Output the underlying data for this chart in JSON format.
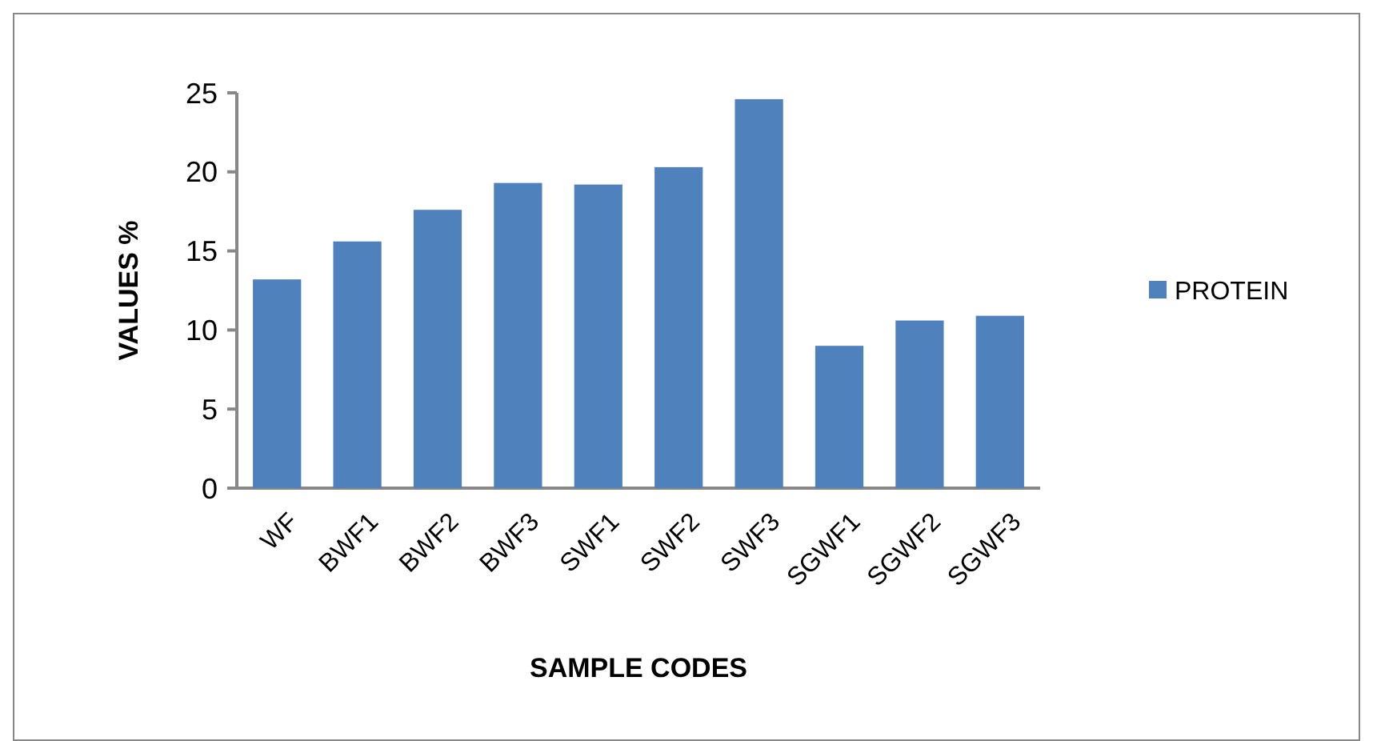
{
  "chart_data": {
    "type": "bar",
    "xlabel": "SAMPLE CODES",
    "ylabel": "VALUES %",
    "categories": [
      "WF",
      "BWF1",
      "BWF2",
      "BWF3",
      "SWF1",
      "SWF2",
      "SWF3",
      "SGWF1",
      "SGWF2",
      "SGWF3"
    ],
    "series": [
      {
        "name": "PROTEIN",
        "color": "#4f81bd",
        "values": [
          13.2,
          15.6,
          17.6,
          19.3,
          19.2,
          20.3,
          24.6,
          9.0,
          10.6,
          10.9
        ]
      }
    ],
    "ylim": [
      0,
      25
    ],
    "yticks": [
      0,
      5,
      10,
      15,
      20,
      25
    ],
    "grid": false,
    "legend": "right"
  }
}
